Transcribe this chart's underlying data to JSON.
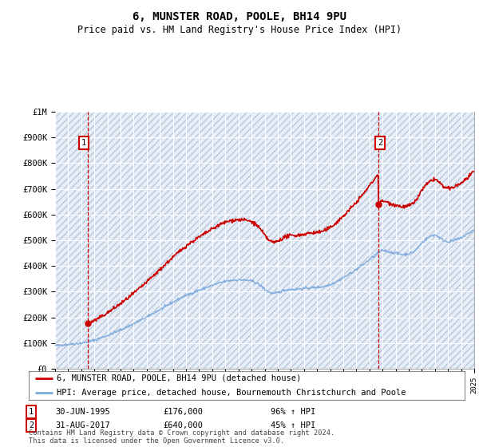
{
  "title": "6, MUNSTER ROAD, POOLE, BH14 9PU",
  "subtitle": "Price paid vs. HM Land Registry's House Price Index (HPI)",
  "legend_line1": "6, MUNSTER ROAD, POOLE, BH14 9PU (detached house)",
  "legend_line2": "HPI: Average price, detached house, Bournemouth Christchurch and Poole",
  "footer": "Contains HM Land Registry data © Crown copyright and database right 2024.\nThis data is licensed under the Open Government Licence v3.0.",
  "sale1_date": "30-JUN-1995",
  "sale1_price": 176000,
  "sale1_label": "96% ↑ HPI",
  "sale1_x": 1995.5,
  "sale2_date": "31-AUG-2017",
  "sale2_price": 640000,
  "sale2_label": "45% ↑ HPI",
  "sale2_x": 2017.67,
  "hpi_color": "#7aaadd",
  "price_color": "#cc0000",
  "bg_hatch_color": "#dde6f0",
  "bg_fill_color": "#e8eef8",
  "grid_color": "#ffffff",
  "ylim": [
    0,
    1000000
  ],
  "yticks": [
    0,
    100000,
    200000,
    300000,
    400000,
    500000,
    600000,
    700000,
    800000,
    900000,
    1000000
  ],
  "ytick_labels": [
    "£0",
    "£100K",
    "£200K",
    "£300K",
    "£400K",
    "£500K",
    "£600K",
    "£700K",
    "£800K",
    "£900K",
    "£1M"
  ],
  "xstart": 1993,
  "xend": 2025
}
